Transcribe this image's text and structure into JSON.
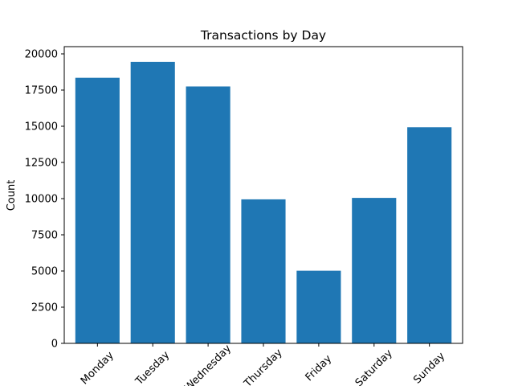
{
  "chart_data": {
    "type": "bar",
    "title": "Transactions by Day",
    "xlabel": "",
    "ylabel": "Count",
    "categories": [
      "Monday",
      "Tuesday",
      "Wednesday",
      "Thursday",
      "Friday",
      "Saturday",
      "Sunday"
    ],
    "values": [
      18350,
      19450,
      17750,
      9950,
      5020,
      10050,
      14930
    ],
    "ylim": [
      0,
      20500
    ],
    "yticks": [
      "0",
      "2500",
      "5000",
      "7500",
      "10000",
      "12500",
      "15000",
      "17500",
      "20000"
    ],
    "ytick_values": [
      0,
      2500,
      5000,
      7500,
      10000,
      12500,
      15000,
      17500,
      20000
    ],
    "bar_color": "#1f77b4",
    "grid": false,
    "xtick_rotation_deg": 45
  }
}
